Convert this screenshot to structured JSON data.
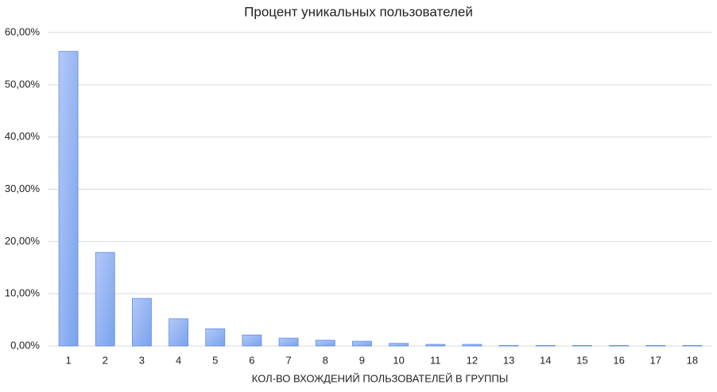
{
  "chart_data": {
    "type": "bar",
    "title": "Процент уникальных пользователей",
    "x_label": "КОЛ-ВО ВХОЖДЕНИЙ ПОЛЬЗОВАТЕЛЕЙ В ГРУППЫ",
    "categories": [
      "1",
      "2",
      "3",
      "4",
      "5",
      "6",
      "7",
      "8",
      "9",
      "10",
      "11",
      "12",
      "13",
      "14",
      "15",
      "16",
      "17",
      "18"
    ],
    "values": [
      56.4,
      17.9,
      9.1,
      5.2,
      3.3,
      2.1,
      1.5,
      1.1,
      0.9,
      0.5,
      0.3,
      0.3,
      0.1,
      0.1,
      0.1,
      0.1,
      0.1,
      0.1
    ],
    "color": "#8fb0f2",
    "ylim": [
      0,
      60
    ],
    "yticks": [
      {
        "value": 0,
        "label": "0,00%"
      },
      {
        "value": 10,
        "label": "10,00%"
      },
      {
        "value": 20,
        "label": "20,00%"
      },
      {
        "value": 30,
        "label": "30,00%"
      },
      {
        "value": 40,
        "label": "40,00%"
      },
      {
        "value": 50,
        "label": "50,00%"
      },
      {
        "value": 60,
        "label": "60,00%"
      }
    ],
    "grid": true
  }
}
